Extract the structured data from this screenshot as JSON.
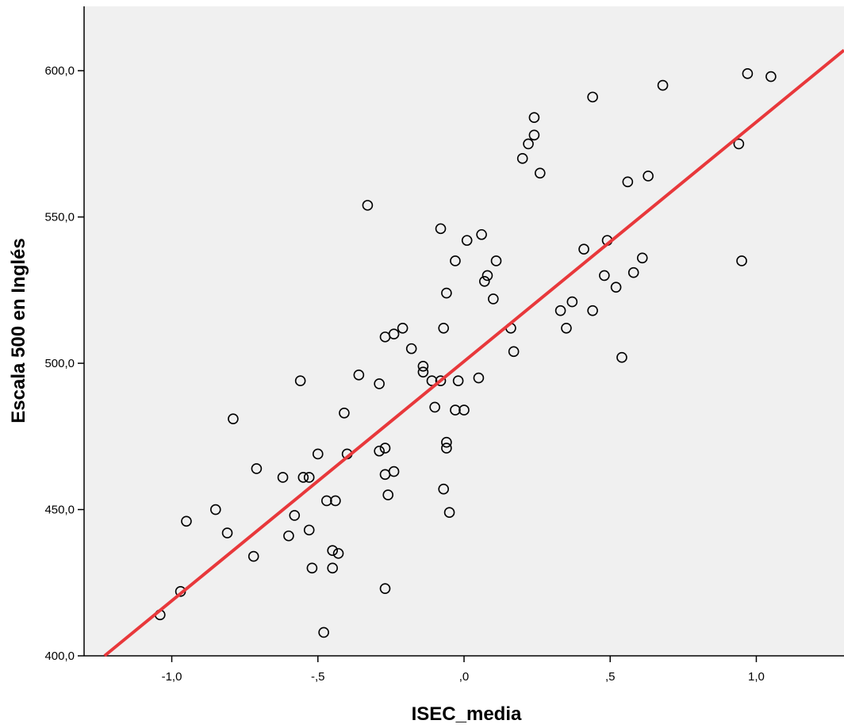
{
  "chart_data": {
    "type": "scatter",
    "title": "",
    "xlabel": "ISEC_media",
    "ylabel": "Escala 500 en Inglés",
    "xlim": [
      -1.3,
      1.3
    ],
    "ylim": [
      400,
      622
    ],
    "x_ticks": [
      {
        "value": -1.0,
        "label": "-1,0"
      },
      {
        "value": -0.5,
        "label": "-,5"
      },
      {
        "value": 0.0,
        "label": ",0"
      },
      {
        "value": 0.5,
        "label": ",5"
      },
      {
        "value": 1.0,
        "label": "1,0"
      }
    ],
    "y_ticks": [
      {
        "value": 400,
        "label": "400,0"
      },
      {
        "value": 450,
        "label": "450,0"
      },
      {
        "value": 500,
        "label": "500,0"
      },
      {
        "value": 550,
        "label": "550,0"
      },
      {
        "value": 600,
        "label": "600,0"
      }
    ],
    "grid": false,
    "colors": {
      "plot_background": "#f0f0f0",
      "marker": "#000000",
      "fit_line": "#e8383b"
    },
    "fit_line": {
      "x": [
        -1.23,
        1.3
      ],
      "y": [
        400,
        607
      ]
    },
    "points": [
      [
        -1.04,
        414
      ],
      [
        -0.97,
        422
      ],
      [
        -0.95,
        446
      ],
      [
        -0.85,
        450
      ],
      [
        -0.81,
        442
      ],
      [
        -0.79,
        481
      ],
      [
        -0.72,
        434
      ],
      [
        -0.71,
        464
      ],
      [
        -0.62,
        461
      ],
      [
        -0.6,
        441
      ],
      [
        -0.58,
        448
      ],
      [
        -0.56,
        494
      ],
      [
        -0.55,
        461
      ],
      [
        -0.53,
        461
      ],
      [
        -0.53,
        443
      ],
      [
        -0.52,
        430
      ],
      [
        -0.5,
        469
      ],
      [
        -0.48,
        408
      ],
      [
        -0.47,
        453
      ],
      [
        -0.45,
        436
      ],
      [
        -0.45,
        430
      ],
      [
        -0.44,
        453
      ],
      [
        -0.43,
        435
      ],
      [
        -0.41,
        483
      ],
      [
        -0.4,
        469
      ],
      [
        -0.36,
        496
      ],
      [
        -0.33,
        554
      ],
      [
        -0.29,
        470
      ],
      [
        -0.29,
        493
      ],
      [
        -0.27,
        509
      ],
      [
        -0.27,
        471
      ],
      [
        -0.27,
        462
      ],
      [
        -0.27,
        423
      ],
      [
        -0.26,
        455
      ],
      [
        -0.24,
        510
      ],
      [
        -0.24,
        463
      ],
      [
        -0.21,
        512
      ],
      [
        -0.18,
        505
      ],
      [
        -0.14,
        499
      ],
      [
        -0.14,
        497
      ],
      [
        -0.11,
        494
      ],
      [
        -0.1,
        485
      ],
      [
        -0.08,
        546
      ],
      [
        -0.08,
        494
      ],
      [
        -0.07,
        512
      ],
      [
        -0.07,
        457
      ],
      [
        -0.06,
        524
      ],
      [
        -0.06,
        473
      ],
      [
        -0.06,
        471
      ],
      [
        -0.05,
        449
      ],
      [
        -0.03,
        535
      ],
      [
        -0.03,
        484
      ],
      [
        -0.02,
        494
      ],
      [
        0.0,
        484
      ],
      [
        0.01,
        542
      ],
      [
        0.05,
        495
      ],
      [
        0.06,
        544
      ],
      [
        0.07,
        528
      ],
      [
        0.08,
        530
      ],
      [
        0.1,
        522
      ],
      [
        0.11,
        535
      ],
      [
        0.16,
        512
      ],
      [
        0.17,
        504
      ],
      [
        0.2,
        570
      ],
      [
        0.22,
        575
      ],
      [
        0.24,
        584
      ],
      [
        0.24,
        578
      ],
      [
        0.26,
        565
      ],
      [
        0.33,
        518
      ],
      [
        0.35,
        512
      ],
      [
        0.37,
        521
      ],
      [
        0.41,
        539
      ],
      [
        0.44,
        591
      ],
      [
        0.44,
        518
      ],
      [
        0.48,
        530
      ],
      [
        0.49,
        542
      ],
      [
        0.52,
        526
      ],
      [
        0.54,
        502
      ],
      [
        0.56,
        562
      ],
      [
        0.58,
        531
      ],
      [
        0.61,
        536
      ],
      [
        0.63,
        564
      ],
      [
        0.68,
        595
      ],
      [
        0.94,
        575
      ],
      [
        0.95,
        535
      ],
      [
        0.97,
        599
      ],
      [
        1.05,
        598
      ]
    ]
  }
}
